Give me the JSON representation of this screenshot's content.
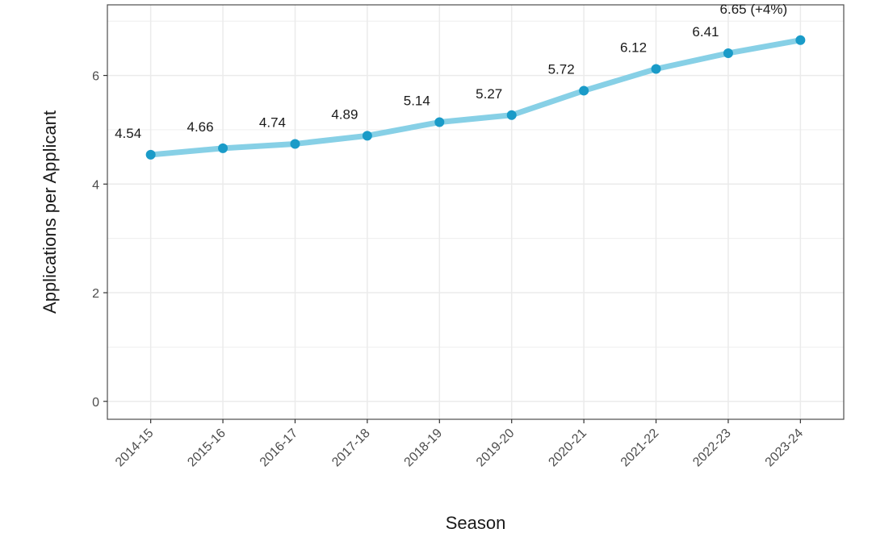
{
  "chart_data": {
    "type": "line",
    "title": "",
    "xlabel": "Season",
    "ylabel": "Applications per Applicant",
    "categories": [
      "2014-15",
      "2015-16",
      "2016-17",
      "2017-18",
      "2018-19",
      "2019-20",
      "2020-21",
      "2021-22",
      "2022-23",
      "2023-24"
    ],
    "values": [
      4.54,
      4.66,
      4.74,
      4.89,
      5.14,
      5.27,
      5.72,
      6.12,
      6.41,
      6.65
    ],
    "data_labels": [
      "4.54",
      "4.66",
      "4.74",
      "4.89",
      "5.14",
      "5.27",
      "5.72",
      "6.12",
      "6.41",
      "6.65 (+4%)"
    ],
    "yticks": [
      0,
      2,
      4,
      6
    ],
    "ylim": [
      -0.33,
      7.3
    ],
    "grid": true,
    "legend": "none",
    "colors": {
      "line": "#87d0e6",
      "point": "#1a9bc8",
      "grid": "#ebebeb",
      "panel_border": "#4d4d4d"
    }
  }
}
